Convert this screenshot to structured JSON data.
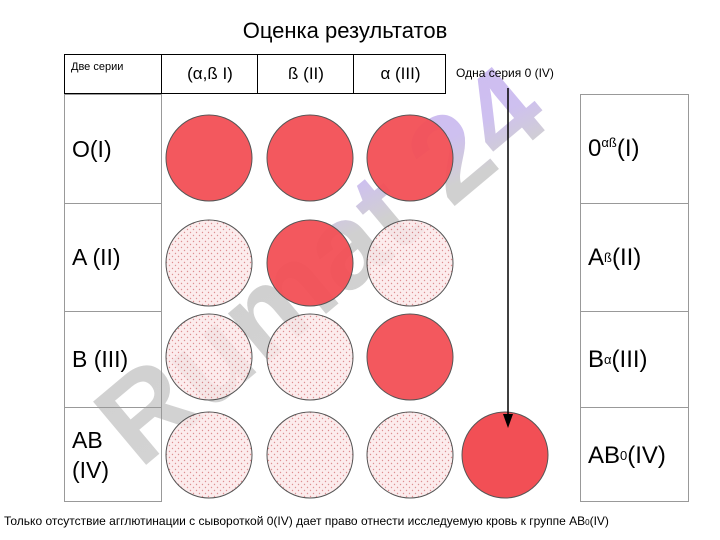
{
  "title": "Оценка результатов",
  "header": {
    "cells": [
      "Две серии",
      "(α,ß I)",
      "ß (II)",
      "α (III)"
    ]
  },
  "single_series_label": "Одна серия 0 (IV)",
  "rows": [
    {
      "label": "O(I)",
      "result": {
        "main": "0",
        "sub": "αß",
        "group": "(I)"
      },
      "agglutination": [
        true,
        true,
        true
      ]
    },
    {
      "label": "A (II)",
      "result": {
        "main": "A",
        "sub": "ß",
        "group": "(II)"
      },
      "agglutination": [
        false,
        true,
        false
      ]
    },
    {
      "label": "B (III)",
      "result": {
        "main": "B",
        "sub": "α",
        "group": "(III)"
      },
      "agglutination": [
        false,
        false,
        true
      ]
    },
    {
      "label": "AB\n(IV)",
      "result": {
        "main": "AB",
        "sub": "0",
        "group": "(IV)"
      },
      "agglutination": [
        false,
        false,
        false
      ]
    }
  ],
  "single_series_result": {
    "row": 3,
    "agglutination": true
  },
  "footer": {
    "prefix": "Только отсутствие агглютинации с сывороткой 0(IV) дает право отнести исследуемую кровь к группе AB",
    "sub": "0",
    "suffix": "(IV)"
  },
  "watermark": "Rumat 24",
  "colors": {
    "positive": "#f24f55",
    "negative": "#fbe9ea",
    "dots": "#d87b7f",
    "watermark": "#c9c9c9",
    "watermark_accent": "#c6b6ec"
  }
}
